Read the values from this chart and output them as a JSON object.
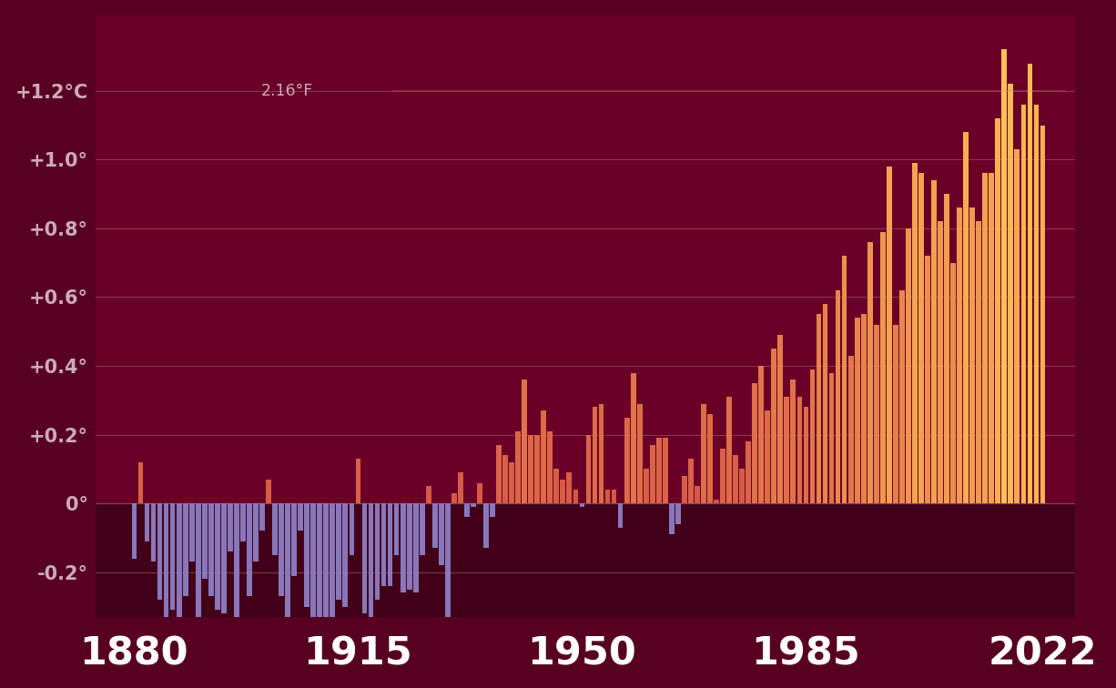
{
  "background_color": "#580020",
  "plot_bg_color": "#6a0025",
  "below_zero_color": "#420018",
  "bar_negative_color": "#8877bb",
  "grid_color": "#b08090",
  "tick_label_color": "#ccaabb",
  "xlim": [
    1874,
    2027
  ],
  "ylim": [
    -0.33,
    1.42
  ],
  "xlabel_ticks": [
    1880,
    1915,
    1950,
    1985,
    2022
  ],
  "yticks": [
    -0.2,
    0.0,
    0.2,
    0.4,
    0.6,
    0.8,
    1.0,
    1.2
  ],
  "ytick_labels": [
    "-0.2°",
    "0°",
    "+0.2°",
    "+0.4°",
    "+0.6°",
    "+0.8°",
    "+1.0°",
    "+1.2°C"
  ],
  "annotation_celsius": "+1.2°C",
  "annotation_fahrenheit": "2.16°F",
  "years": [
    1880,
    1881,
    1882,
    1883,
    1884,
    1885,
    1886,
    1887,
    1888,
    1889,
    1890,
    1891,
    1892,
    1893,
    1894,
    1895,
    1896,
    1897,
    1898,
    1899,
    1900,
    1901,
    1902,
    1903,
    1904,
    1905,
    1906,
    1907,
    1908,
    1909,
    1910,
    1911,
    1912,
    1913,
    1914,
    1915,
    1916,
    1917,
    1918,
    1919,
    1920,
    1921,
    1922,
    1923,
    1924,
    1925,
    1926,
    1927,
    1928,
    1929,
    1930,
    1931,
    1932,
    1933,
    1934,
    1935,
    1936,
    1937,
    1938,
    1939,
    1940,
    1941,
    1942,
    1943,
    1944,
    1945,
    1946,
    1947,
    1948,
    1949,
    1950,
    1951,
    1952,
    1953,
    1954,
    1955,
    1956,
    1957,
    1958,
    1959,
    1960,
    1961,
    1962,
    1963,
    1964,
    1965,
    1966,
    1967,
    1968,
    1969,
    1970,
    1971,
    1972,
    1973,
    1974,
    1975,
    1976,
    1977,
    1978,
    1979,
    1980,
    1981,
    1982,
    1983,
    1984,
    1985,
    1986,
    1987,
    1988,
    1989,
    1990,
    1991,
    1992,
    1993,
    1994,
    1995,
    1996,
    1997,
    1998,
    1999,
    2000,
    2001,
    2002,
    2003,
    2004,
    2005,
    2006,
    2007,
    2008,
    2009,
    2010,
    2011,
    2012,
    2013,
    2014,
    2015,
    2016,
    2017,
    2018,
    2019,
    2020,
    2021,
    2022
  ],
  "anomalies": [
    -0.16,
    0.12,
    -0.11,
    -0.17,
    -0.28,
    -0.33,
    -0.31,
    -0.36,
    -0.27,
    -0.17,
    -0.35,
    -0.22,
    -0.27,
    -0.31,
    -0.32,
    -0.14,
    -0.36,
    -0.11,
    -0.27,
    -0.17,
    -0.08,
    0.07,
    -0.15,
    -0.27,
    -0.34,
    -0.21,
    -0.08,
    -0.3,
    -0.4,
    -0.38,
    -0.38,
    -0.38,
    -0.28,
    -0.3,
    -0.15,
    0.13,
    -0.32,
    -0.44,
    -0.28,
    -0.24,
    -0.24,
    -0.15,
    -0.26,
    -0.25,
    -0.26,
    -0.15,
    0.05,
    -0.13,
    -0.18,
    -0.35,
    0.03,
    0.09,
    -0.04,
    -0.01,
    0.06,
    -0.13,
    -0.04,
    0.17,
    0.14,
    0.12,
    0.21,
    0.36,
    0.2,
    0.2,
    0.27,
    0.21,
    0.1,
    0.07,
    0.09,
    0.04,
    -0.01,
    0.2,
    0.28,
    0.29,
    0.04,
    0.04,
    -0.07,
    0.25,
    0.38,
    0.29,
    0.1,
    0.17,
    0.19,
    0.19,
    -0.09,
    -0.06,
    0.08,
    0.13,
    0.05,
    0.29,
    0.26,
    0.01,
    0.16,
    0.31,
    0.14,
    0.1,
    0.18,
    0.35,
    0.4,
    0.27,
    0.45,
    0.49,
    0.31,
    0.36,
    0.31,
    0.28,
    0.39,
    0.55,
    0.58,
    0.38,
    0.62,
    0.72,
    0.43,
    0.54,
    0.55,
    0.76,
    0.52,
    0.79,
    0.98,
    0.52,
    0.62,
    0.8,
    0.99,
    0.96,
    0.72,
    0.94,
    0.82,
    0.9,
    0.7,
    0.86,
    1.08,
    0.86,
    0.82,
    0.96,
    0.96,
    1.12,
    1.32,
    1.22,
    1.03,
    1.16,
    1.28,
    1.16,
    1.1
  ]
}
